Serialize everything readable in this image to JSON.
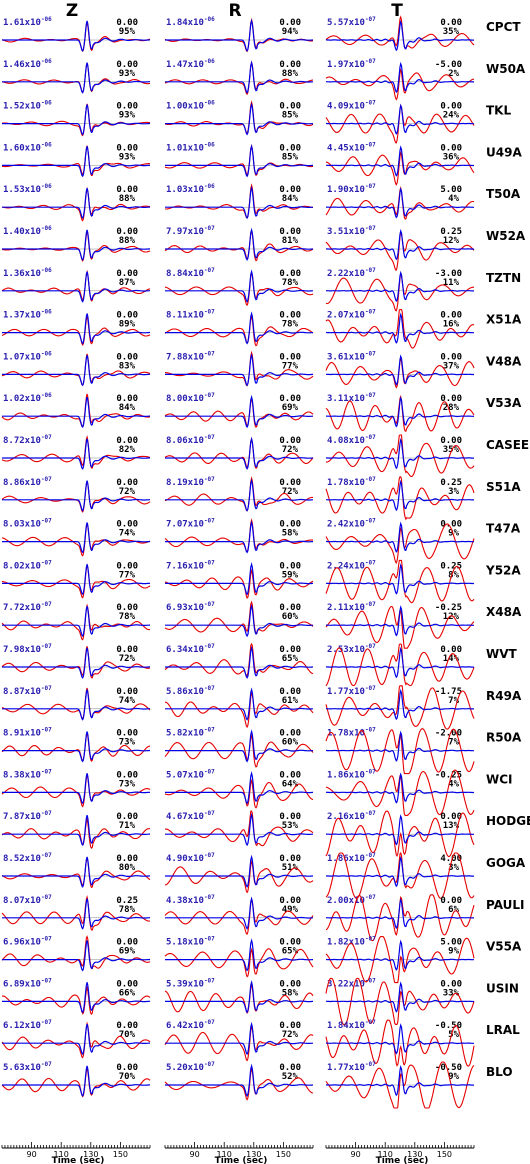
{
  "colors": {
    "observed": "#e60000",
    "synthetic": "#0000e6",
    "amplitude_text": "#2a1fb0",
    "text": "#000000"
  },
  "chart_data": {
    "type": "line",
    "components": [
      "Z",
      "R",
      "T"
    ],
    "xlabel": "Time (sec)",
    "xlim": [
      70,
      170
    ],
    "x_ticks": [
      90,
      110,
      130,
      150
    ],
    "series": [
      {
        "name": "observed"
      },
      {
        "name": "synthetic"
      }
    ],
    "stations": [
      {
        "name": "CPCT",
        "z": {
          "amp": "1.61x10",
          "exp": "-06",
          "shift": "0.00",
          "fit": "95%"
        },
        "r": {
          "amp": "1.84x10",
          "exp": "-06",
          "shift": "0.00",
          "fit": "94%"
        },
        "t": {
          "amp": "5.57x10",
          "exp": "-07",
          "shift": "0.00",
          "fit": "35%"
        }
      },
      {
        "name": "W50A",
        "z": {
          "amp": "1.46x10",
          "exp": "-06",
          "shift": "0.00",
          "fit": "93%"
        },
        "r": {
          "amp": "1.47x10",
          "exp": "-06",
          "shift": "0.00",
          "fit": "88%"
        },
        "t": {
          "amp": "1.97x10",
          "exp": "-07",
          "shift": "-5.00",
          "fit": "2%"
        }
      },
      {
        "name": "TKL",
        "z": {
          "amp": "1.52x10",
          "exp": "-06",
          "shift": "0.00",
          "fit": "93%"
        },
        "r": {
          "amp": "1.00x10",
          "exp": "-06",
          "shift": "0.00",
          "fit": "85%"
        },
        "t": {
          "amp": "4.09x10",
          "exp": "-07",
          "shift": "0.00",
          "fit": "24%"
        }
      },
      {
        "name": "U49A",
        "z": {
          "amp": "1.60x10",
          "exp": "-06",
          "shift": "0.00",
          "fit": "93%"
        },
        "r": {
          "amp": "1.01x10",
          "exp": "-06",
          "shift": "0.00",
          "fit": "85%"
        },
        "t": {
          "amp": "4.45x10",
          "exp": "-07",
          "shift": "0.00",
          "fit": "36%"
        }
      },
      {
        "name": "T50A",
        "z": {
          "amp": "1.53x10",
          "exp": "-06",
          "shift": "0.00",
          "fit": "88%"
        },
        "r": {
          "amp": "1.03x10",
          "exp": "-06",
          "shift": "0.00",
          "fit": "84%"
        },
        "t": {
          "amp": "1.90x10",
          "exp": "-07",
          "shift": "5.00",
          "fit": "4%"
        }
      },
      {
        "name": "W52A",
        "z": {
          "amp": "1.40x10",
          "exp": "-06",
          "shift": "0.00",
          "fit": "88%"
        },
        "r": {
          "amp": "7.97x10",
          "exp": "-07",
          "shift": "0.00",
          "fit": "81%"
        },
        "t": {
          "amp": "3.51x10",
          "exp": "-07",
          "shift": "0.25",
          "fit": "12%"
        }
      },
      {
        "name": "TZTN",
        "z": {
          "amp": "1.36x10",
          "exp": "-06",
          "shift": "0.00",
          "fit": "87%"
        },
        "r": {
          "amp": "8.84x10",
          "exp": "-07",
          "shift": "0.00",
          "fit": "78%"
        },
        "t": {
          "amp": "2.22x10",
          "exp": "-07",
          "shift": "-3.00",
          "fit": "11%"
        }
      },
      {
        "name": "X51A",
        "z": {
          "amp": "1.37x10",
          "exp": "-06",
          "shift": "0.00",
          "fit": "89%"
        },
        "r": {
          "amp": "8.11x10",
          "exp": "-07",
          "shift": "0.00",
          "fit": "78%"
        },
        "t": {
          "amp": "2.07x10",
          "exp": "-07",
          "shift": "0.00",
          "fit": "16%"
        }
      },
      {
        "name": "V48A",
        "z": {
          "amp": "1.07x10",
          "exp": "-06",
          "shift": "0.00",
          "fit": "83%"
        },
        "r": {
          "amp": "7.88x10",
          "exp": "-07",
          "shift": "0.00",
          "fit": "77%"
        },
        "t": {
          "amp": "3.61x10",
          "exp": "-07",
          "shift": "0.00",
          "fit": "37%"
        }
      },
      {
        "name": "V53A",
        "z": {
          "amp": "1.02x10",
          "exp": "-06",
          "shift": "0.00",
          "fit": "84%"
        },
        "r": {
          "amp": "8.00x10",
          "exp": "-07",
          "shift": "0.00",
          "fit": "69%"
        },
        "t": {
          "amp": "3.11x10",
          "exp": "-07",
          "shift": "0.00",
          "fit": "28%"
        }
      },
      {
        "name": "CASEE",
        "z": {
          "amp": "8.72x10",
          "exp": "-07",
          "shift": "0.00",
          "fit": "82%"
        },
        "r": {
          "amp": "8.06x10",
          "exp": "-07",
          "shift": "0.00",
          "fit": "72%"
        },
        "t": {
          "amp": "4.08x10",
          "exp": "-07",
          "shift": "0.00",
          "fit": "35%"
        }
      },
      {
        "name": "S51A",
        "z": {
          "amp": "8.86x10",
          "exp": "-07",
          "shift": "0.00",
          "fit": "72%"
        },
        "r": {
          "amp": "8.19x10",
          "exp": "-07",
          "shift": "0.00",
          "fit": "72%"
        },
        "t": {
          "amp": "1.78x10",
          "exp": "-07",
          "shift": "0.25",
          "fit": "3%"
        }
      },
      {
        "name": "T47A",
        "z": {
          "amp": "8.03x10",
          "exp": "-07",
          "shift": "0.00",
          "fit": "74%"
        },
        "r": {
          "amp": "7.07x10",
          "exp": "-07",
          "shift": "0.00",
          "fit": "58%"
        },
        "t": {
          "amp": "2.42x10",
          "exp": "-07",
          "shift": "0.00",
          "fit": "9%"
        }
      },
      {
        "name": "Y52A",
        "z": {
          "amp": "8.02x10",
          "exp": "-07",
          "shift": "0.00",
          "fit": "77%"
        },
        "r": {
          "amp": "7.16x10",
          "exp": "-07",
          "shift": "0.00",
          "fit": "59%"
        },
        "t": {
          "amp": "2.24x10",
          "exp": "-07",
          "shift": "0.25",
          "fit": "8%"
        }
      },
      {
        "name": "X48A",
        "z": {
          "amp": "7.72x10",
          "exp": "-07",
          "shift": "0.00",
          "fit": "78%"
        },
        "r": {
          "amp": "6.93x10",
          "exp": "-07",
          "shift": "0.00",
          "fit": "60%"
        },
        "t": {
          "amp": "2.11x10",
          "exp": "-07",
          "shift": "-0.25",
          "fit": "12%"
        }
      },
      {
        "name": "WVT",
        "z": {
          "amp": "7.98x10",
          "exp": "-07",
          "shift": "0.00",
          "fit": "72%"
        },
        "r": {
          "amp": "6.34x10",
          "exp": "-07",
          "shift": "0.00",
          "fit": "65%"
        },
        "t": {
          "amp": "2.53x10",
          "exp": "-07",
          "shift": "0.00",
          "fit": "14%"
        }
      },
      {
        "name": "R49A",
        "z": {
          "amp": "8.87x10",
          "exp": "-07",
          "shift": "0.00",
          "fit": "74%"
        },
        "r": {
          "amp": "5.86x10",
          "exp": "-07",
          "shift": "0.00",
          "fit": "61%"
        },
        "t": {
          "amp": "1.77x10",
          "exp": "-07",
          "shift": "-1.75",
          "fit": "7%"
        }
      },
      {
        "name": "R50A",
        "z": {
          "amp": "8.91x10",
          "exp": "-07",
          "shift": "0.00",
          "fit": "73%"
        },
        "r": {
          "amp": "5.82x10",
          "exp": "-07",
          "shift": "0.00",
          "fit": "60%"
        },
        "t": {
          "amp": "1.78x10",
          "exp": "-07",
          "shift": "-2.00",
          "fit": "7%"
        }
      },
      {
        "name": "WCI",
        "z": {
          "amp": "8.38x10",
          "exp": "-07",
          "shift": "0.00",
          "fit": "73%"
        },
        "r": {
          "amp": "5.07x10",
          "exp": "-07",
          "shift": "0.00",
          "fit": "64%"
        },
        "t": {
          "amp": "1.86x10",
          "exp": "-07",
          "shift": "-0.25",
          "fit": "4%"
        }
      },
      {
        "name": "HODGE",
        "z": {
          "amp": "7.87x10",
          "exp": "-07",
          "shift": "0.00",
          "fit": "71%"
        },
        "r": {
          "amp": "4.67x10",
          "exp": "-07",
          "shift": "0.00",
          "fit": "53%"
        },
        "t": {
          "amp": "2.16x10",
          "exp": "-07",
          "shift": "0.00",
          "fit": "13%"
        }
      },
      {
        "name": "GOGA",
        "z": {
          "amp": "8.52x10",
          "exp": "-07",
          "shift": "0.00",
          "fit": "80%"
        },
        "r": {
          "amp": "4.90x10",
          "exp": "-07",
          "shift": "0.00",
          "fit": "51%"
        },
        "t": {
          "amp": "1.86x10",
          "exp": "-07",
          "shift": "4.00",
          "fit": "3%"
        }
      },
      {
        "name": "PAULI",
        "z": {
          "amp": "8.07x10",
          "exp": "-07",
          "shift": "0.25",
          "fit": "78%"
        },
        "r": {
          "amp": "4.38x10",
          "exp": "-07",
          "shift": "0.00",
          "fit": "49%"
        },
        "t": {
          "amp": "2.00x10",
          "exp": "-07",
          "shift": "0.00",
          "fit": "6%"
        }
      },
      {
        "name": "V55A",
        "z": {
          "amp": "6.96x10",
          "exp": "-07",
          "shift": "0.00",
          "fit": "69%"
        },
        "r": {
          "amp": "5.18x10",
          "exp": "-07",
          "shift": "0.00",
          "fit": "65%"
        },
        "t": {
          "amp": "1.82x10",
          "exp": "-07",
          "shift": "5.00",
          "fit": "9%"
        }
      },
      {
        "name": "USIN",
        "z": {
          "amp": "6.89x10",
          "exp": "-07",
          "shift": "0.00",
          "fit": "66%"
        },
        "r": {
          "amp": "5.39x10",
          "exp": "-07",
          "shift": "0.00",
          "fit": "58%"
        },
        "t": {
          "amp": "3.22x10",
          "exp": "-07",
          "shift": "0.00",
          "fit": "33%"
        }
      },
      {
        "name": "LRAL",
        "z": {
          "amp": "6.12x10",
          "exp": "-07",
          "shift": "0.00",
          "fit": "70%"
        },
        "r": {
          "amp": "6.42x10",
          "exp": "-07",
          "shift": "0.00",
          "fit": "72%"
        },
        "t": {
          "amp": "1.84x10",
          "exp": "-07",
          "shift": "-0.50",
          "fit": "5%"
        }
      },
      {
        "name": "BLO",
        "z": {
          "amp": "5.63x10",
          "exp": "-07",
          "shift": "0.00",
          "fit": "70%"
        },
        "r": {
          "amp": "5.20x10",
          "exp": "-07",
          "shift": "0.00",
          "fit": "52%"
        },
        "t": {
          "amp": "1.77x10",
          "exp": "-07",
          "shift": "-0.50",
          "fit": "9%"
        }
      }
    ]
  }
}
